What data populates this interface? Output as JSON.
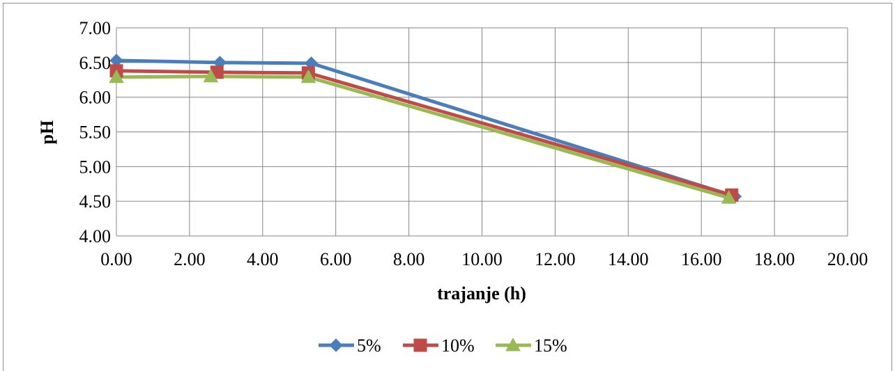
{
  "chart_data": {
    "type": "line",
    "title": "",
    "xlabel": "trajanje (h)",
    "ylabel": "pH",
    "xlim": [
      0,
      20
    ],
    "ylim": [
      4,
      7
    ],
    "xticks": [
      "0.00",
      "2.00",
      "4.00",
      "6.00",
      "8.00",
      "10.00",
      "12.00",
      "14.00",
      "16.00",
      "18.00",
      "20.00"
    ],
    "yticks": [
      "4.00",
      "4.50",
      "5.00",
      "5.50",
      "6.00",
      "6.50",
      "7.00"
    ],
    "grid": true,
    "legend_position": "bottom",
    "series": [
      {
        "name": "5%",
        "color": "#4a7ebb",
        "marker": "diamond",
        "points": [
          [
            0.0,
            6.53
          ],
          [
            2.83,
            6.5
          ],
          [
            5.33,
            6.49
          ],
          [
            16.92,
            4.57
          ]
        ]
      },
      {
        "name": "10%",
        "color": "#be4b48",
        "marker": "square",
        "points": [
          [
            0.0,
            6.38
          ],
          [
            2.75,
            6.36
          ],
          [
            5.25,
            6.35
          ],
          [
            16.83,
            4.59
          ]
        ]
      },
      {
        "name": "15%",
        "color": "#98b954",
        "marker": "triangle",
        "points": [
          [
            0.0,
            6.29
          ],
          [
            2.58,
            6.3
          ],
          [
            5.25,
            6.29
          ],
          [
            16.75,
            4.55
          ]
        ]
      }
    ]
  }
}
